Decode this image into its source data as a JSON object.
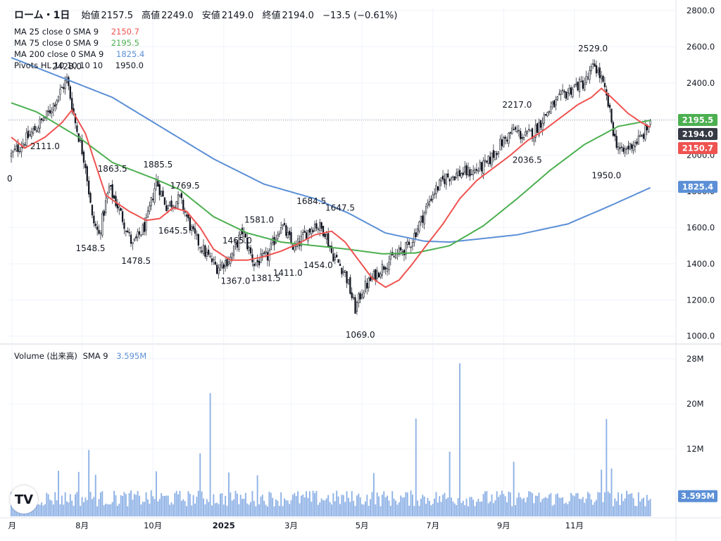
{
  "header": {
    "symbol": "ローム・1日",
    "open_label": "始値",
    "open": "2157.5",
    "high_label": "高値",
    "high": "2249.0",
    "low_label": "安値",
    "low": "2149.0",
    "close_label": "終値",
    "close": "2194.0",
    "change": "−13.5 (−0.61%)"
  },
  "indicators": [
    {
      "name": "MA 25 close 0 SMA 9",
      "value": "2150.7",
      "color": "#ef5350"
    },
    {
      "name": "MA 75 close 0 SMA 9",
      "value": "2195.5",
      "color": "#4caf50"
    },
    {
      "name": "MA 200 close 0 SMA 9",
      "value": "1825.4",
      "color": "#5b8fd6"
    },
    {
      "name": "Pivots HL 10 10 10 10",
      "value": "1950.0",
      "color": "#131722"
    }
  ],
  "volume_legend": {
    "name": "Volume (出来高)",
    "sma": "SMA 9",
    "value": "3.595M"
  },
  "logo_text": "TV",
  "price_badges": [
    {
      "label": "2195.5",
      "value": 2195.5,
      "color": "#4caf50"
    },
    {
      "label": "2194.0",
      "value": 2194.0,
      "color": "#363a45"
    },
    {
      "label": "2150.7",
      "value": 2150.7,
      "color": "#ef5350"
    },
    {
      "label": "1825.4",
      "value": 1825.4,
      "color": "#5b8fd6"
    }
  ],
  "volume_badge": {
    "label": "3.595M",
    "value": 3.595,
    "color": "#5b8fd6"
  },
  "chart_data": {
    "type": "candlestick",
    "price_axis": {
      "ticks": [
        1000,
        1200,
        1400,
        1600,
        1800,
        2000,
        2200,
        2400,
        2600,
        2800
      ],
      "tick_labels": [
        "1000.0",
        "1200.0",
        "1400.0",
        "1600.0",
        "1800.0",
        "2000.0",
        "2200.0",
        "2400.0",
        "2600.0",
        "2800.0"
      ]
    },
    "volume_axis": {
      "ticks": [
        12,
        20,
        28
      ],
      "tick_labels": [
        "12M",
        "20M",
        "28M"
      ],
      "unit": "M"
    },
    "time_axis": {
      "labels": [
        "月",
        "8月",
        "10月",
        "2025",
        "3月",
        "5月",
        "7月",
        "9月",
        "11月"
      ],
      "positions": [
        0.5,
        42,
        84,
        126,
        166,
        208,
        250,
        292,
        334
      ]
    },
    "price_range": [
      960,
      2820
    ],
    "volume_range": [
      0,
      29.5
    ],
    "bar_count": 380,
    "last_close": 2194.0,
    "price_keyframes": [
      [
        0,
        2000
      ],
      [
        8,
        2080
      ],
      [
        22,
        2230
      ],
      [
        33,
        2420
      ],
      [
        38,
        2180
      ],
      [
        44,
        1950
      ],
      [
        48,
        1650
      ],
      [
        52,
        1560
      ],
      [
        58,
        1820
      ],
      [
        64,
        1700
      ],
      [
        72,
        1500
      ],
      [
        80,
        1620
      ],
      [
        86,
        1860
      ],
      [
        92,
        1720
      ],
      [
        100,
        1760
      ],
      [
        108,
        1560
      ],
      [
        115,
        1460
      ],
      [
        122,
        1380
      ],
      [
        130,
        1430
      ],
      [
        137,
        1580
      ],
      [
        144,
        1400
      ],
      [
        152,
        1440
      ],
      [
        160,
        1620
      ],
      [
        168,
        1480
      ],
      [
        174,
        1560
      ],
      [
        180,
        1620
      ],
      [
        186,
        1580
      ],
      [
        190,
        1460
      ],
      [
        198,
        1350
      ],
      [
        204,
        1150
      ],
      [
        208,
        1250
      ],
      [
        214,
        1320
      ],
      [
        222,
        1400
      ],
      [
        230,
        1460
      ],
      [
        236,
        1500
      ],
      [
        242,
        1620
      ],
      [
        250,
        1790
      ],
      [
        258,
        1880
      ],
      [
        266,
        1900
      ],
      [
        274,
        1910
      ],
      [
        282,
        1950
      ],
      [
        290,
        2060
      ],
      [
        298,
        2140
      ],
      [
        304,
        2100
      ],
      [
        310,
        2130
      ],
      [
        318,
        2240
      ],
      [
        326,
        2320
      ],
      [
        334,
        2380
      ],
      [
        340,
        2400
      ],
      [
        346,
        2500
      ],
      [
        350,
        2420
      ],
      [
        354,
        2280
      ],
      [
        358,
        2090
      ],
      [
        362,
        2010
      ],
      [
        368,
        2060
      ],
      [
        374,
        2100
      ],
      [
        380,
        2194
      ]
    ],
    "volume_base": 3.2,
    "volume_spikes": [
      [
        28,
        8.1
      ],
      [
        40,
        7.9
      ],
      [
        46,
        11.8
      ],
      [
        50,
        7.4
      ],
      [
        86,
        8.0
      ],
      [
        112,
        11.2
      ],
      [
        118,
        21.9
      ],
      [
        129,
        7.8
      ],
      [
        146,
        7.3
      ],
      [
        215,
        7.7
      ],
      [
        240,
        17.4
      ],
      [
        260,
        11.5
      ],
      [
        266,
        27.2
      ],
      [
        298,
        9.7
      ],
      [
        350,
        8.3
      ],
      [
        353,
        17.3
      ],
      [
        356,
        8.5
      ]
    ],
    "series": [
      {
        "name": "MA 25 close 0 SMA 9",
        "period": 25,
        "color": "#ef5350",
        "last": 2150.7
      },
      {
        "name": "MA 75 close 0 SMA 9",
        "period": 75,
        "color": "#4caf50",
        "last": 2195.5
      },
      {
        "name": "MA 200 close 0 SMA 9",
        "period": 200,
        "color": "#5b8fd6",
        "last": 1825.4
      }
    ],
    "ma200_keyframes": [
      [
        0,
        2540
      ],
      [
        30,
        2430
      ],
      [
        60,
        2320
      ],
      [
        90,
        2150
      ],
      [
        120,
        1980
      ],
      [
        150,
        1840
      ],
      [
        180,
        1760
      ],
      [
        200,
        1680
      ],
      [
        222,
        1570
      ],
      [
        245,
        1525
      ],
      [
        260,
        1520
      ],
      [
        275,
        1535
      ],
      [
        300,
        1560
      ],
      [
        330,
        1620
      ],
      [
        355,
        1720
      ],
      [
        380,
        1825
      ]
    ],
    "ma75_keyframes": [
      [
        0,
        2290
      ],
      [
        15,
        2240
      ],
      [
        40,
        2100
      ],
      [
        60,
        1960
      ],
      [
        85,
        1870
      ],
      [
        100,
        1810
      ],
      [
        120,
        1660
      ],
      [
        140,
        1570
      ],
      [
        160,
        1520
      ],
      [
        180,
        1500
      ],
      [
        200,
        1480
      ],
      [
        220,
        1455
      ],
      [
        240,
        1460
      ],
      [
        260,
        1500
      ],
      [
        280,
        1610
      ],
      [
        300,
        1760
      ],
      [
        320,
        1920
      ],
      [
        340,
        2060
      ],
      [
        360,
        2160
      ],
      [
        380,
        2195
      ]
    ],
    "ma25_keyframes": [
      [
        0,
        2100
      ],
      [
        8,
        2040
      ],
      [
        20,
        2100
      ],
      [
        30,
        2180
      ],
      [
        36,
        2250
      ],
      [
        44,
        2120
      ],
      [
        50,
        1950
      ],
      [
        56,
        1780
      ],
      [
        62,
        1740
      ],
      [
        70,
        1690
      ],
      [
        80,
        1640
      ],
      [
        88,
        1650
      ],
      [
        96,
        1710
      ],
      [
        104,
        1690
      ],
      [
        112,
        1600
      ],
      [
        120,
        1480
      ],
      [
        130,
        1420
      ],
      [
        140,
        1420
      ],
      [
        150,
        1440
      ],
      [
        160,
        1470
      ],
      [
        170,
        1510
      ],
      [
        180,
        1560
      ],
      [
        190,
        1580
      ],
      [
        198,
        1520
      ],
      [
        206,
        1420
      ],
      [
        214,
        1320
      ],
      [
        222,
        1270
      ],
      [
        230,
        1310
      ],
      [
        238,
        1400
      ],
      [
        246,
        1500
      ],
      [
        256,
        1620
      ],
      [
        266,
        1760
      ],
      [
        276,
        1860
      ],
      [
        286,
        1930
      ],
      [
        296,
        2000
      ],
      [
        306,
        2080
      ],
      [
        316,
        2140
      ],
      [
        326,
        2210
      ],
      [
        336,
        2280
      ],
      [
        344,
        2320
      ],
      [
        350,
        2370
      ],
      [
        356,
        2320
      ],
      [
        366,
        2230
      ],
      [
        374,
        2180
      ],
      [
        380,
        2150.7
      ]
    ],
    "annotations": [
      {
        "text": "2428.0",
        "bar": 33,
        "price": 2428.0,
        "pos": "above"
      },
      {
        "text": "2111.0",
        "bar": 20,
        "price": 2111.0,
        "pos": "below"
      },
      {
        "text": "1863.5",
        "bar": 60,
        "price": 1863.5,
        "pos": "above"
      },
      {
        "text": "1885.5",
        "bar": 87,
        "price": 1885.5,
        "pos": "above"
      },
      {
        "text": "1769.5",
        "bar": 103,
        "price": 1769.5,
        "pos": "above"
      },
      {
        "text": "1548.5",
        "bar": 47,
        "price": 1548.5,
        "pos": "below"
      },
      {
        "text": "1478.5",
        "bar": 74,
        "price": 1478.5,
        "pos": "below"
      },
      {
        "text": "1645.5",
        "bar": 96,
        "price": 1645.5,
        "pos": "below"
      },
      {
        "text": "1581.0",
        "bar": 147,
        "price": 1581.0,
        "pos": "above"
      },
      {
        "text": "1465.0",
        "bar": 134,
        "price": 1465.0,
        "pos": "above"
      },
      {
        "text": "1684.5",
        "bar": 178,
        "price": 1684.5,
        "pos": "above"
      },
      {
        "text": "1647.5",
        "bar": 195,
        "price": 1647.5,
        "pos": "above"
      },
      {
        "text": "1367.0",
        "bar": 133,
        "price": 1367.0,
        "pos": "below"
      },
      {
        "text": "1381.5",
        "bar": 151,
        "price": 1381.5,
        "pos": "below"
      },
      {
        "text": "1411.0",
        "bar": 164,
        "price": 1411.0,
        "pos": "below"
      },
      {
        "text": "1454.0",
        "bar": 182,
        "price": 1454.0,
        "pos": "below"
      },
      {
        "text": "1069.0",
        "bar": 207,
        "price": 1069.0,
        "pos": "below"
      },
      {
        "text": "2217.0",
        "bar": 300,
        "price": 2217.0,
        "pos": "above"
      },
      {
        "text": "2036.5",
        "bar": 306,
        "price": 2036.5,
        "pos": "below"
      },
      {
        "text": "2529.0",
        "bar": 345,
        "price": 2529.0,
        "pos": "above"
      },
      {
        "text": "1950.0",
        "bar": 353,
        "price": 1950.0,
        "pos": "below"
      }
    ],
    "left_cut_label": "0"
  }
}
